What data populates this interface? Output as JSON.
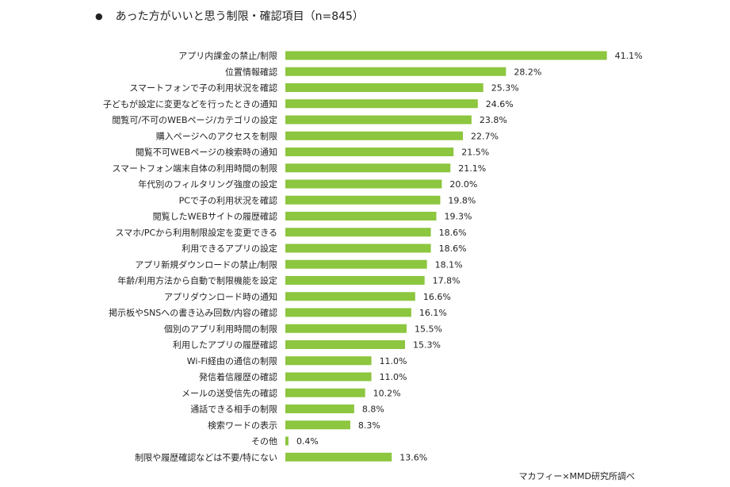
{
  "title": "あった方がいいと思う制限・確認項目（n=845）",
  "source": "マカフィー×MMD研究所調べ",
  "chart_data": {
    "type": "bar",
    "orientation": "horizontal",
    "title": "あった方がいいと思う制限・確認項目（n=845）",
    "bar_color": "#8dc63f",
    "unit": "%",
    "categories": [
      "アプリ内課金の禁止/制限",
      "位置情報確認",
      "スマートフォンで子の利用状況を確認",
      "子どもが設定に変更などを行ったときの通知",
      "閲覧可/不可のWEBページ/カテゴリの設定",
      "購入ページへのアクセスを制限",
      "閲覧不可WEBページの検索時の通知",
      "スマートフォン端末自体の利用時間の制限",
      "年代別のフィルタリング強度の設定",
      "PCで子の利用状況を確認",
      "閲覧したWEBサイトの履歴確認",
      "スマホ/PCから利用制限設定を変更できる",
      "利用できるアプリの設定",
      "アプリ新規ダウンロードの禁止/制限",
      "年齢/利用方法から自動で制限機能を設定",
      "アプリダウンロード時の通知",
      "掲示板やSNSへの書き込み回数/内容の確認",
      "個別のアプリ利用時間の制限",
      "利用したアプリの履歴確認",
      "Wi-Fi経由の通信の制限",
      "発信着信履歴の確認",
      "メールの送受信先の確認",
      "通話できる相手の制限",
      "検索ワードの表示",
      "その他",
      "制限や履歴確認などは不要/特にない"
    ],
    "values": [
      41.1,
      28.2,
      25.3,
      24.6,
      23.8,
      22.7,
      21.5,
      21.1,
      20.0,
      19.8,
      19.3,
      18.6,
      18.6,
      18.1,
      17.8,
      16.6,
      16.1,
      15.5,
      15.3,
      11.0,
      11.0,
      10.2,
      8.8,
      8.3,
      0.4,
      13.6
    ],
    "value_labels": [
      "41.1%",
      "28.2%",
      "25.3%",
      "24.6%",
      "23.8%",
      "22.7%",
      "21.5%",
      "21.1%",
      "20.0%",
      "19.8%",
      "19.3%",
      "18.6%",
      "18.6%",
      "18.1%",
      "17.8%",
      "16.6%",
      "16.1%",
      "15.5%",
      "15.3%",
      "11.0%",
      "11.0%",
      "10.2%",
      "8.8%",
      "8.3%",
      "0.4%",
      "13.6%"
    ],
    "grid": false,
    "legend": "none"
  }
}
